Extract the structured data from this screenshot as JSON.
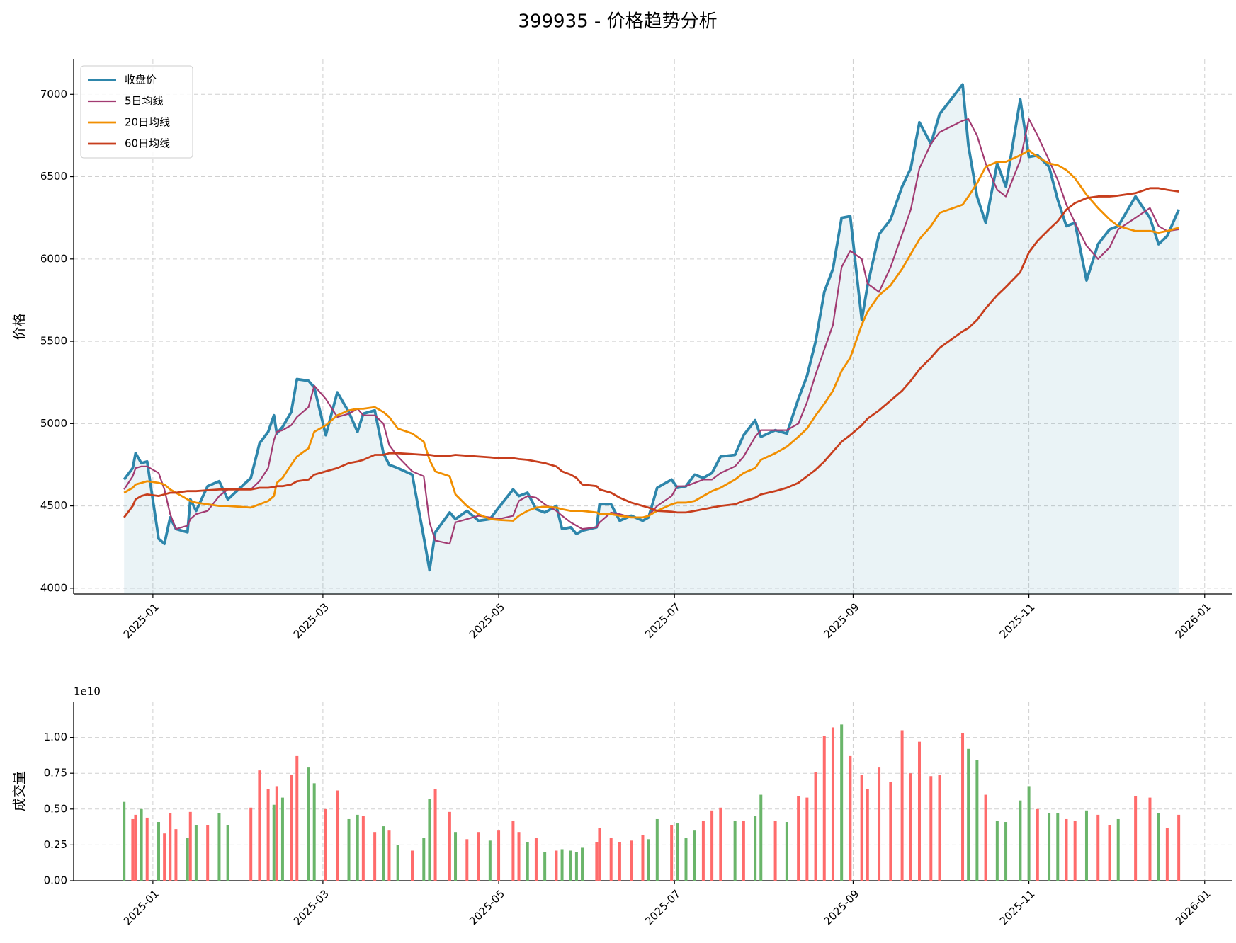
{
  "chart_data": [
    {
      "type": "line",
      "title": "399935 - 价格趋势分析",
      "ylabel": "价格",
      "x": [
        -10,
        -7,
        -6,
        -4,
        -2,
        2,
        4,
        6,
        8,
        12,
        13,
        15,
        19,
        23,
        26,
        34,
        37,
        40,
        42,
        43,
        45,
        48,
        50,
        54,
        56,
        60,
        64,
        68,
        71,
        73,
        77,
        80,
        82,
        85,
        90,
        94,
        96,
        98,
        103,
        105,
        109,
        113,
        117,
        120,
        125,
        127,
        130,
        133,
        136,
        140,
        142,
        145,
        147,
        149,
        154,
        155,
        159,
        162,
        166,
        170,
        172,
        175,
        180,
        182,
        185,
        188,
        191,
        194,
        197,
        202,
        205,
        209,
        211,
        216,
        220,
        224,
        227,
        230,
        233,
        236,
        239,
        242,
        246,
        248,
        252,
        256,
        260,
        263,
        266,
        270,
        273,
        281,
        283,
        286,
        289,
        293,
        296,
        301,
        304,
        307,
        311,
        314,
        317,
        320,
        324,
        328,
        332,
        335,
        341,
        346,
        349,
        352,
        356
      ],
      "series": [
        {
          "name": "收盘价",
          "color": "#2e86ab",
          "fill": true,
          "values": [
            4660,
            4730,
            4820,
            4760,
            4770,
            4300,
            4270,
            4430,
            4360,
            4340,
            4540,
            4470,
            4620,
            4650,
            4540,
            4670,
            4880,
            4950,
            5050,
            4940,
            4980,
            5070,
            5270,
            5260,
            5220,
            4930,
            5190,
            5070,
            4950,
            5060,
            5080,
            4820,
            4750,
            4730,
            4690,
            4310,
            4110,
            4340,
            4460,
            4420,
            4470,
            4410,
            4420,
            4490,
            4600,
            4560,
            4580,
            4480,
            4460,
            4500,
            4360,
            4370,
            4330,
            4350,
            4370,
            4510,
            4510,
            4410,
            4440,
            4410,
            4430,
            4610,
            4660,
            4610,
            4620,
            4690,
            4670,
            4700,
            4800,
            4810,
            4930,
            5020,
            4920,
            4960,
            4940,
            5150,
            5290,
            5500,
            5800,
            5940,
            6250,
            6260,
            5630,
            5840,
            6150,
            6240,
            6440,
            6550,
            6830,
            6700,
            6880,
            7060,
            6690,
            6380,
            6220,
            6580,
            6440,
            6970,
            6620,
            6630,
            6560,
            6360,
            6200,
            6220,
            5870,
            6090,
            6180,
            6200,
            6380,
            6250,
            6090,
            6140,
            6300
          ]
        },
        {
          "name": "5日均线",
          "color": "#a23b72",
          "values": [
            4600,
            4680,
            4730,
            4740,
            4740,
            4700,
            4600,
            4450,
            4360,
            4380,
            4420,
            4450,
            4470,
            4560,
            4600,
            4600,
            4650,
            4730,
            4900,
            4950,
            4960,
            4990,
            5040,
            5100,
            5230,
            5150,
            5040,
            5060,
            5090,
            5050,
            5050,
            5000,
            4870,
            4800,
            4710,
            4680,
            4400,
            4290,
            4270,
            4400,
            4420,
            4440,
            4430,
            4420,
            4440,
            4530,
            4560,
            4550,
            4510,
            4470,
            4440,
            4400,
            4380,
            4360,
            4370,
            4400,
            4460,
            4450,
            4430,
            4430,
            4440,
            4500,
            4560,
            4620,
            4620,
            4640,
            4660,
            4660,
            4700,
            4740,
            4800,
            4920,
            4960,
            4960,
            4960,
            5000,
            5130,
            5300,
            5450,
            5600,
            5950,
            6050,
            6000,
            5850,
            5800,
            5950,
            6150,
            6300,
            6550,
            6700,
            6770,
            6840,
            6850,
            6750,
            6580,
            6420,
            6380,
            6600,
            6850,
            6750,
            6600,
            6480,
            6330,
            6220,
            6080,
            6000,
            6070,
            6180,
            6250,
            6310,
            6200,
            6170,
            6180
          ]
        },
        {
          "name": "20日均线",
          "color": "#f18f01",
          "values": [
            4580,
            4610,
            4630,
            4640,
            4650,
            4640,
            4630,
            4600,
            4580,
            4540,
            4530,
            4520,
            4510,
            4500,
            4500,
            4490,
            4510,
            4530,
            4560,
            4640,
            4670,
            4750,
            4800,
            4850,
            4950,
            4990,
            5050,
            5080,
            5090,
            5090,
            5100,
            5070,
            5040,
            4970,
            4940,
            4890,
            4780,
            4710,
            4680,
            4570,
            4500,
            4450,
            4420,
            4415,
            4410,
            4440,
            4470,
            4490,
            4495,
            4490,
            4480,
            4470,
            4470,
            4470,
            4460,
            4450,
            4450,
            4440,
            4430,
            4430,
            4440,
            4470,
            4510,
            4520,
            4520,
            4530,
            4560,
            4590,
            4610,
            4660,
            4700,
            4730,
            4780,
            4820,
            4860,
            4920,
            4970,
            5050,
            5120,
            5200,
            5320,
            5400,
            5600,
            5680,
            5780,
            5840,
            5940,
            6030,
            6120,
            6200,
            6280,
            6330,
            6380,
            6460,
            6560,
            6590,
            6590,
            6630,
            6660,
            6620,
            6580,
            6570,
            6540,
            6490,
            6390,
            6310,
            6240,
            6200,
            6170,
            6170,
            6160,
            6170,
            6190
          ]
        },
        {
          "name": "60日均线",
          "color": "#c73e1d",
          "values": [
            4430,
            4500,
            4540,
            4560,
            4570,
            4560,
            4570,
            4580,
            4580,
            4590,
            4590,
            4590,
            4595,
            4600,
            4600,
            4600,
            4610,
            4610,
            4615,
            4620,
            4620,
            4630,
            4650,
            4660,
            4690,
            4710,
            4730,
            4760,
            4770,
            4780,
            4810,
            4810,
            4820,
            4820,
            4815,
            4810,
            4810,
            4805,
            4805,
            4810,
            4805,
            4800,
            4795,
            4790,
            4790,
            4785,
            4780,
            4770,
            4760,
            4740,
            4710,
            4690,
            4670,
            4630,
            4620,
            4600,
            4580,
            4550,
            4520,
            4500,
            4490,
            4470,
            4465,
            4460,
            4460,
            4470,
            4480,
            4490,
            4500,
            4510,
            4530,
            4550,
            4570,
            4590,
            4610,
            4640,
            4680,
            4720,
            4770,
            4830,
            4890,
            4930,
            4990,
            5030,
            5080,
            5140,
            5200,
            5260,
            5330,
            5400,
            5460,
            5560,
            5580,
            5630,
            5700,
            5780,
            5830,
            5920,
            6040,
            6110,
            6180,
            6230,
            6300,
            6340,
            6370,
            6380,
            6380,
            6385,
            6400,
            6430,
            6430,
            6420,
            6410
          ]
        }
      ],
      "xlim": [
        -27.5,
        374.4
      ],
      "xticks": [
        {
          "value": 0,
          "label": "2025-01"
        },
        {
          "value": 59,
          "label": "2025-03"
        },
        {
          "value": 120,
          "label": "2025-05"
        },
        {
          "value": 181,
          "label": "2025-07"
        },
        {
          "value": 243,
          "label": "2025-09"
        },
        {
          "value": 304,
          "label": "2025-11"
        },
        {
          "value": 365,
          "label": "2026-01"
        }
      ],
      "ylim": [
        3965,
        7212
      ],
      "yticks": [
        4000,
        4500,
        5000,
        5500,
        6000,
        6500,
        7000
      ],
      "grid": true,
      "legend": "upper left"
    },
    {
      "type": "bar",
      "ylabel": "成交量",
      "offset_text": "1e10",
      "x": [
        -10,
        -7,
        -6,
        -4,
        -2,
        2,
        4,
        6,
        8,
        12,
        13,
        15,
        19,
        23,
        26,
        34,
        37,
        40,
        42,
        43,
        45,
        48,
        50,
        54,
        56,
        60,
        64,
        68,
        71,
        73,
        77,
        80,
        82,
        85,
        90,
        94,
        96,
        98,
        103,
        105,
        109,
        113,
        117,
        120,
        125,
        127,
        130,
        133,
        136,
        140,
        142,
        145,
        147,
        149,
        154,
        155,
        159,
        162,
        166,
        170,
        172,
        175,
        180,
        182,
        185,
        188,
        191,
        194,
        197,
        202,
        205,
        209,
        211,
        216,
        220,
        224,
        227,
        230,
        233,
        236,
        239,
        242,
        246,
        248,
        252,
        256,
        260,
        263,
        266,
        270,
        273,
        281,
        283,
        286,
        289,
        293,
        296,
        301,
        304,
        307,
        311,
        314,
        317,
        320,
        324,
        328,
        332,
        335,
        341,
        346,
        349,
        352,
        356
      ],
      "values": [
        0.55,
        0.43,
        0.46,
        0.5,
        0.44,
        0.41,
        0.33,
        0.47,
        0.36,
        0.3,
        0.48,
        0.39,
        0.39,
        0.47,
        0.39,
        0.51,
        0.77,
        0.64,
        0.53,
        0.66,
        0.58,
        0.74,
        0.87,
        0.79,
        0.68,
        0.5,
        0.63,
        0.43,
        0.46,
        0.45,
        0.34,
        0.38,
        0.35,
        0.25,
        0.21,
        0.3,
        0.57,
        0.64,
        0.48,
        0.34,
        0.29,
        0.34,
        0.28,
        0.35,
        0.42,
        0.34,
        0.27,
        0.3,
        0.2,
        0.21,
        0.22,
        0.21,
        0.2,
        0.23,
        0.27,
        0.37,
        0.3,
        0.27,
        0.28,
        0.32,
        0.29,
        0.43,
        0.39,
        0.4,
        0.3,
        0.35,
        0.42,
        0.49,
        0.51,
        0.42,
        0.42,
        0.45,
        0.6,
        0.42,
        0.41,
        0.59,
        0.58,
        0.76,
        1.01,
        1.07,
        1.09,
        0.87,
        0.74,
        0.64,
        0.79,
        0.69,
        1.05,
        0.75,
        0.97,
        0.73,
        0.74,
        1.03,
        0.92,
        0.84,
        0.6,
        0.42,
        0.41,
        0.56,
        0.66,
        0.5,
        0.47,
        0.47,
        0.43,
        0.42,
        0.49,
        0.46,
        0.39,
        0.43,
        0.59,
        0.58,
        0.47,
        0.37,
        0.46
      ],
      "colors": [
        "#6ab56a",
        "#ff6b6b",
        "#ff6b6b",
        "#6ab56a",
        "#ff6b6b",
        "#6ab56a",
        "#ff6b6b",
        "#ff6b6b",
        "#ff6b6b",
        "#6ab56a",
        "#ff6b6b",
        "#6ab56a",
        "#ff6b6b",
        "#6ab56a",
        "#6ab56a",
        "#ff6b6b",
        "#ff6b6b",
        "#ff6b6b",
        "#6ab56a",
        "#ff6b6b",
        "#6ab56a",
        "#ff6b6b",
        "#ff6b6b",
        "#6ab56a",
        "#6ab56a",
        "#ff6b6b",
        "#ff6b6b",
        "#6ab56a",
        "#6ab56a",
        "#ff6b6b",
        "#ff6b6b",
        "#6ab56a",
        "#ff6b6b",
        "#6ab56a",
        "#ff6b6b",
        "#6ab56a",
        "#6ab56a",
        "#ff6b6b",
        "#ff6b6b",
        "#6ab56a",
        "#ff6b6b",
        "#ff6b6b",
        "#6ab56a",
        "#ff6b6b",
        "#ff6b6b",
        "#ff6b6b",
        "#6ab56a",
        "#ff6b6b",
        "#6ab56a",
        "#ff6b6b",
        "#6ab56a",
        "#6ab56a",
        "#6ab56a",
        "#6ab56a",
        "#ff6b6b",
        "#ff6b6b",
        "#ff6b6b",
        "#ff6b6b",
        "#ff6b6b",
        "#ff6b6b",
        "#6ab56a",
        "#6ab56a",
        "#ff6b6b",
        "#6ab56a",
        "#6ab56a",
        "#6ab56a",
        "#ff6b6b",
        "#ff6b6b",
        "#ff6b6b",
        "#6ab56a",
        "#ff6b6b",
        "#6ab56a",
        "#6ab56a",
        "#ff6b6b",
        "#6ab56a",
        "#ff6b6b",
        "#ff6b6b",
        "#ff6b6b",
        "#ff6b6b",
        "#ff6b6b",
        "#6ab56a",
        "#ff6b6b",
        "#ff6b6b",
        "#ff6b6b",
        "#ff6b6b",
        "#ff6b6b",
        "#ff6b6b",
        "#ff6b6b",
        "#ff6b6b",
        "#ff6b6b",
        "#ff6b6b",
        "#ff6b6b",
        "#6ab56a",
        "#6ab56a",
        "#ff6b6b",
        "#6ab56a",
        "#6ab56a",
        "#6ab56a",
        "#6ab56a",
        "#ff6b6b",
        "#6ab56a",
        "#6ab56a",
        "#ff6b6b",
        "#ff6b6b",
        "#6ab56a",
        "#ff6b6b",
        "#ff6b6b",
        "#6ab56a",
        "#ff6b6b",
        "#ff6b6b",
        "#6ab56a",
        "#ff6b6b",
        "#ff6b6b"
      ],
      "xlim": [
        -27.5,
        374.4
      ],
      "xticks": [
        {
          "value": 0,
          "label": "2025-01"
        },
        {
          "value": 59,
          "label": "2025-03"
        },
        {
          "value": 120,
          "label": "2025-05"
        },
        {
          "value": 181,
          "label": "2025-07"
        },
        {
          "value": 243,
          "label": "2025-09"
        },
        {
          "value": 304,
          "label": "2025-11"
        },
        {
          "value": 365,
          "label": "2026-01"
        }
      ],
      "ylim": [
        0,
        1.25
      ],
      "yticks": [
        {
          "value": 0,
          "label": "0.00"
        },
        {
          "value": 0.25,
          "label": "0.25"
        },
        {
          "value": 0.5,
          "label": "0.50"
        },
        {
          "value": 0.75,
          "label": "0.75"
        },
        {
          "value": 1,
          "label": "1.00"
        }
      ],
      "grid": true
    }
  ]
}
